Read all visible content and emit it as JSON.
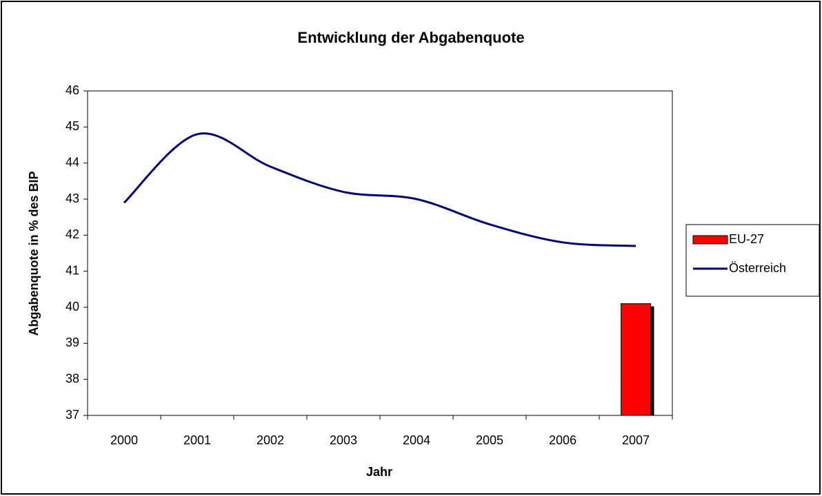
{
  "chart_data": {
    "type": "combo",
    "title": "Entwicklung der Abgabenquote",
    "x_label": "Jahr",
    "y_label": "Abgabenquote in % des BIP",
    "categories": [
      "2000",
      "2001",
      "2002",
      "2003",
      "2004",
      "2005",
      "2006",
      "2007"
    ],
    "series": [
      {
        "name": "EU-27",
        "type": "bar",
        "color": "#ff0000",
        "values": [
          null,
          null,
          null,
          null,
          null,
          null,
          null,
          40.1
        ]
      },
      {
        "name": "Österreich",
        "type": "line",
        "color": "#000080",
        "values": [
          42.9,
          44.8,
          43.9,
          43.2,
          43.0,
          42.3,
          41.8,
          41.7
        ]
      }
    ],
    "ylim": [
      37,
      46
    ],
    "yticks": [
      37,
      38,
      39,
      40,
      41,
      42,
      43,
      44,
      45,
      46
    ],
    "grid": false,
    "legend": "right"
  }
}
